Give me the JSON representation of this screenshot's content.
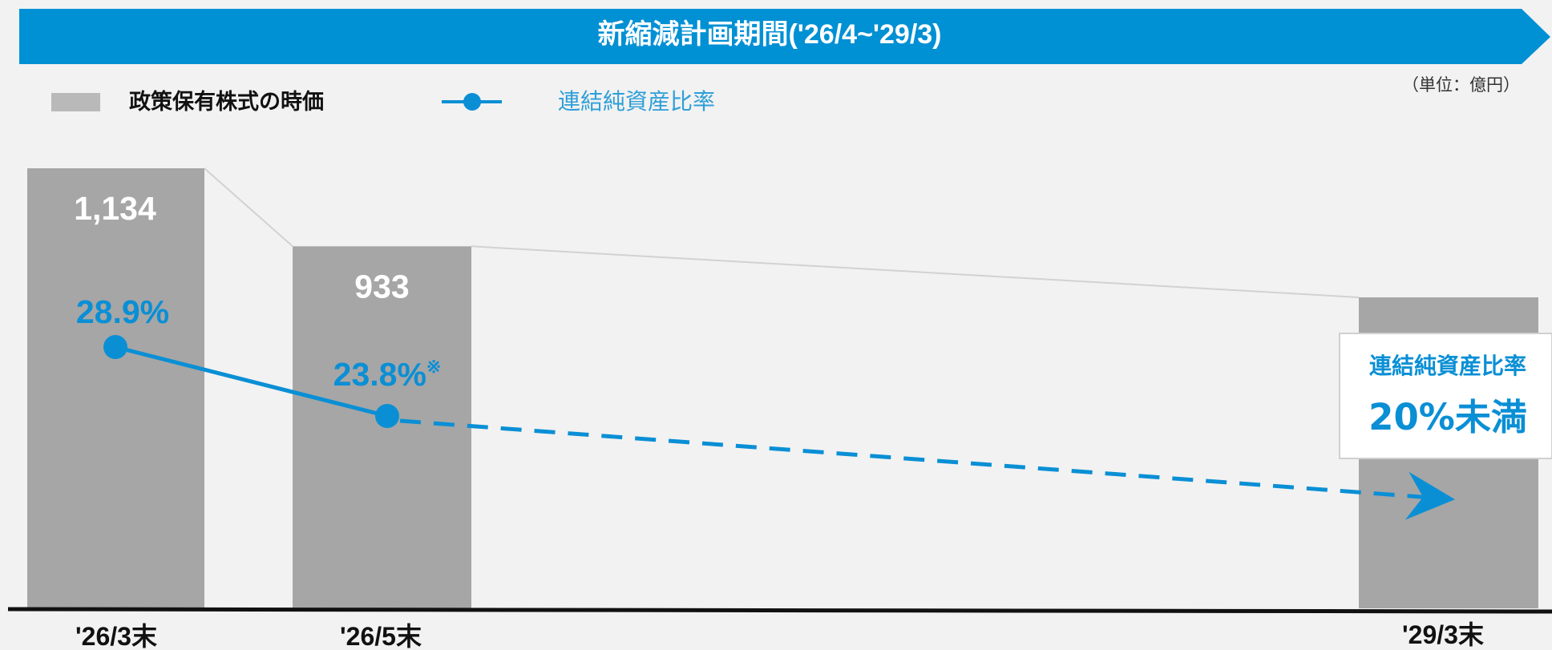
{
  "banner": {
    "title": "新縮減計画期間('26/4~'29/3)"
  },
  "unit_label": "（単位：億円）",
  "legend": {
    "bar_label": "政策保有株式の時価",
    "line_label": "連結純資産比率"
  },
  "callout": {
    "heading": "連結純資産比率",
    "value": "20%未満"
  },
  "colors": {
    "banner": "#0090d4",
    "bar": "#a6a6a6",
    "line": "#0a8fd5",
    "background": "#f2f2f2",
    "axis": "#111111"
  },
  "chart_data": {
    "type": "bar",
    "categories": [
      "'26/3末",
      "'26/5末",
      "'29/3末"
    ],
    "series": [
      {
        "name": "政策保有株式の時価",
        "values": [
          1134,
          933,
          null
        ],
        "labels": [
          "1,134",
          "933",
          ""
        ]
      },
      {
        "name": "連結純資産比率",
        "type": "line",
        "values": [
          28.9,
          23.8,
          null
        ],
        "labels": [
          "28.9%",
          "23.8%",
          ""
        ],
        "label_notes": [
          "",
          "※",
          ""
        ],
        "projection": {
          "from_index": 1,
          "to_index": 2,
          "style": "dashed",
          "target": "20%未満"
        }
      }
    ],
    "ylim": [
      0,
      1134
    ],
    "grid": false,
    "legend_position": "top-left"
  }
}
